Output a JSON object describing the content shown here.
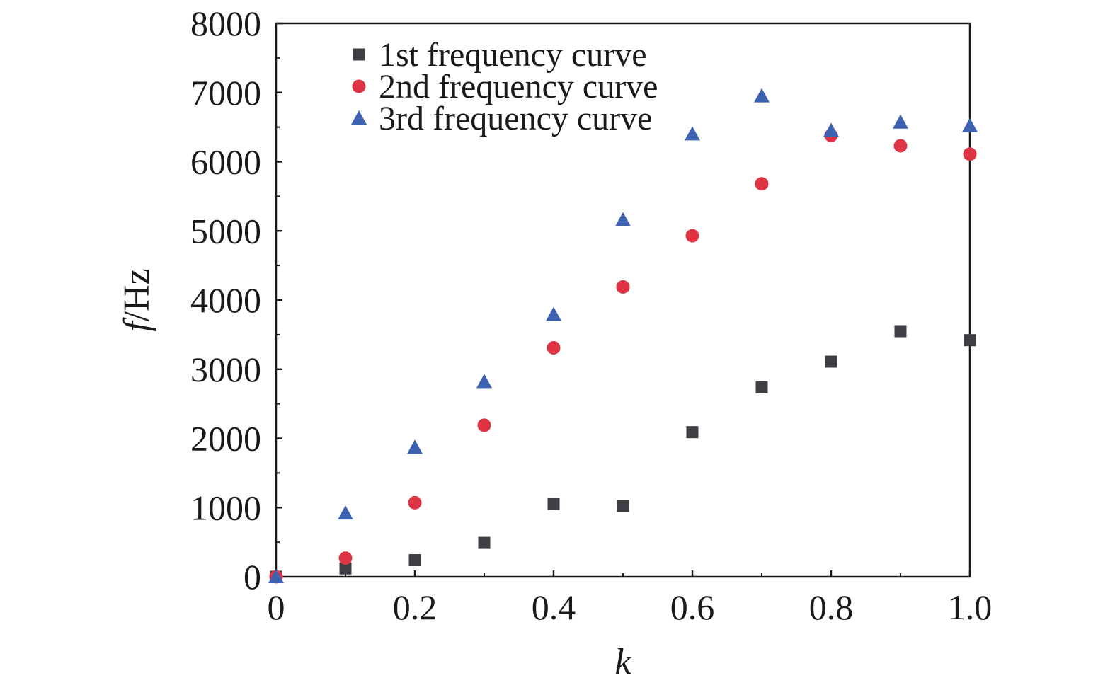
{
  "chart_data": {
    "type": "scatter",
    "title": "",
    "xlabel": "k",
    "ylabel_italic": "f",
    "ylabel_unit": "/Hz",
    "xlim": [
      0,
      1.0
    ],
    "ylim": [
      0,
      8000
    ],
    "x_ticks": [
      "0",
      "0.2",
      "0.4",
      "0.6",
      "0.8",
      "1.0"
    ],
    "y_ticks": [
      "0",
      "1000",
      "2000",
      "3000",
      "4000",
      "5000",
      "6000",
      "7000",
      "8000"
    ],
    "grid": false,
    "legend_position": "top-left",
    "x": [
      0,
      0.1,
      0.2,
      0.3,
      0.4,
      0.5,
      0.6,
      0.7,
      0.8,
      0.9,
      1.0
    ],
    "series": [
      {
        "name": "1st frequency curve",
        "marker": "square",
        "color": "#3d3f44",
        "values": [
          0,
          120,
          240,
          490,
          1050,
          1020,
          2090,
          2740,
          3110,
          3550,
          3420
        ]
      },
      {
        "name": "2nd frequency curve",
        "marker": "circle",
        "color": "#df3444",
        "values": [
          0,
          270,
          1070,
          2190,
          3310,
          4190,
          4930,
          5680,
          6380,
          6230,
          6110
        ]
      },
      {
        "name": "3rd frequency curve",
        "marker": "triangle",
        "color": "#3d62b1",
        "values": [
          0,
          920,
          1870,
          2820,
          3790,
          5160,
          6400,
          6950,
          6450,
          6570,
          6520
        ]
      }
    ]
  }
}
